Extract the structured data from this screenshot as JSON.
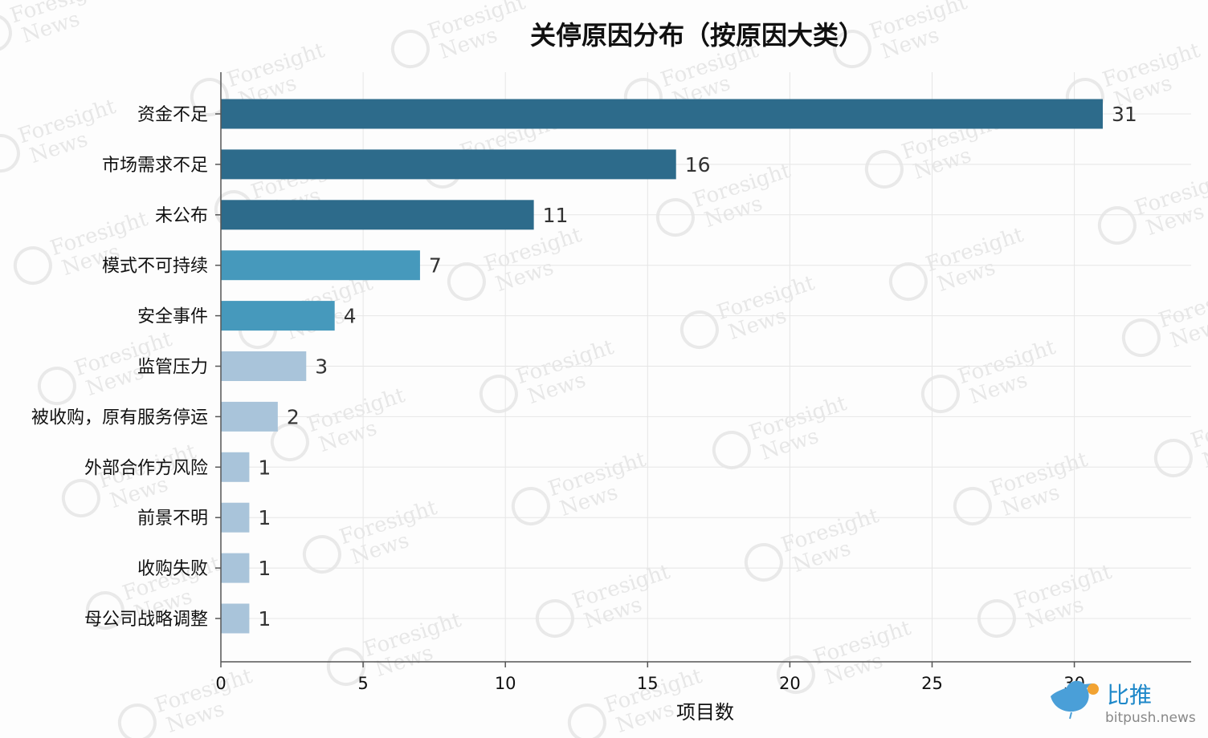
{
  "chart_data": {
    "type": "bar",
    "orientation": "horizontal",
    "title": "关停原因分布（按原因大类）",
    "xlabel": "项目数",
    "ylabel": "",
    "categories": [
      "资金不足",
      "市场需求不足",
      "未公布",
      "模式不可持续",
      "安全事件",
      "监管压力",
      "被收购，原有服务停运",
      "外部合作方风险",
      "前景不明",
      "收购失败",
      "母公司战略调整"
    ],
    "values": [
      31,
      16,
      11,
      7,
      4,
      3,
      2,
      1,
      1,
      1,
      1
    ],
    "colors": [
      "#2d6b8b",
      "#2d6b8b",
      "#2d6b8b",
      "#4699bc",
      "#4699bc",
      "#a9c4da",
      "#a9c4da",
      "#a9c4da",
      "#a9c4da",
      "#a9c4da",
      "#a9c4da"
    ],
    "xlim": [
      0,
      34
    ],
    "xticks": [
      0,
      5,
      10,
      15,
      20,
      25,
      30
    ],
    "grid": true,
    "legend": "none",
    "data_labels": true
  },
  "watermark": {
    "line1": "Foresight",
    "line2": "News"
  },
  "logo": {
    "name": "比推",
    "url": "bitpush.news",
    "icon": "bird-logo-icon"
  }
}
